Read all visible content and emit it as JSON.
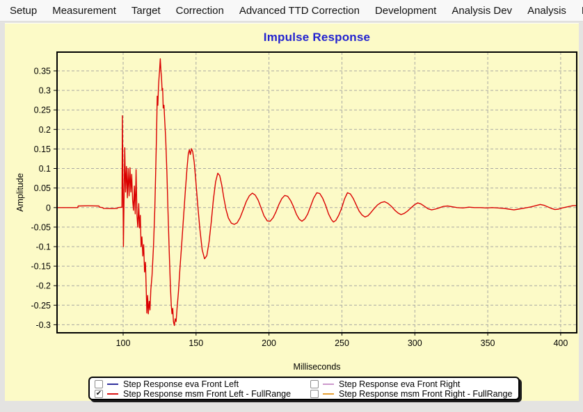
{
  "menu": {
    "items": [
      {
        "label": "Setup"
      },
      {
        "label": "Measurement"
      },
      {
        "label": "Target"
      },
      {
        "label": "Correction"
      },
      {
        "label": "Advanced TTD Correction"
      },
      {
        "label": "Development"
      },
      {
        "label": "Analysis Dev"
      },
      {
        "label": "Analysis"
      },
      {
        "label": "P"
      }
    ]
  },
  "chart": {
    "background_color": "#fcfac7",
    "title_color": "#2323d0",
    "grid_color": "#a8a8a2"
  },
  "chart_data": {
    "type": "line",
    "title": "Impulse Response",
    "xlabel": "Milliseconds",
    "ylabel": "Amplitude",
    "xlim": [
      54.7,
      411.0
    ],
    "ylim": [
      -0.3206,
      0.398
    ],
    "grid": true,
    "x_ticks": [
      {
        "v": 100,
        "label": "100"
      },
      {
        "v": 150,
        "label": "150"
      },
      {
        "v": 200,
        "label": "200"
      },
      {
        "v": 250,
        "label": "250"
      },
      {
        "v": 300,
        "label": "300"
      },
      {
        "v": 350,
        "label": "350"
      },
      {
        "v": 400,
        "label": "400"
      }
    ],
    "y_ticks": [
      {
        "v": 0.35,
        "label": "0.35"
      },
      {
        "v": 0.3,
        "label": "0.3"
      },
      {
        "v": 0.25,
        "label": "0.25"
      },
      {
        "v": 0.2,
        "label": "0.2"
      },
      {
        "v": 0.15,
        "label": "0.15"
      },
      {
        "v": 0.1,
        "label": "0.1"
      },
      {
        "v": 0.05,
        "label": "0.05"
      },
      {
        "v": 0,
        "label": "0"
      },
      {
        "v": -0.05,
        "label": "-0.05"
      },
      {
        "v": -0.1,
        "label": "-0.1"
      },
      {
        "v": -0.15,
        "label": "-0.15"
      },
      {
        "v": -0.2,
        "label": "-0.2"
      },
      {
        "v": -0.25,
        "label": "-0.25"
      },
      {
        "v": -0.3,
        "label": "-0.3"
      }
    ],
    "series": [
      {
        "name": "Step Response msm Front Left - FullRange",
        "color": "#da0000",
        "points": [
          [
            54.7,
            0
          ],
          [
            60,
            0
          ],
          [
            65,
            0
          ],
          [
            68.8,
            0
          ],
          [
            69.2,
            0.004
          ],
          [
            76,
            0.0045
          ],
          [
            83.4,
            0.004
          ],
          [
            83.8,
            0.001
          ],
          [
            86,
            0
          ],
          [
            86.4,
            -0.002
          ],
          [
            92,
            -0.0025
          ],
          [
            96,
            -0.002
          ],
          [
            96.4,
            0
          ],
          [
            99.2,
            0.001
          ],
          [
            99.5,
            0.235
          ],
          [
            100.2,
            -0.1
          ],
          [
            101.1,
            0.153
          ],
          [
            101.7,
            0.04
          ],
          [
            102.3,
            0.105
          ],
          [
            102.9,
            0.025
          ],
          [
            103.5,
            0.1
          ],
          [
            104.1,
            0.03
          ],
          [
            104.7,
            0.102
          ],
          [
            105.3,
            0.04
          ],
          [
            105.9,
            0.085
          ],
          [
            106.5,
            0.02
          ],
          [
            107.1,
            -0.007
          ],
          [
            107.7,
            0.055
          ],
          [
            108.3,
            -0.016
          ],
          [
            108.9,
            0.097
          ],
          [
            109.5,
            -0.02
          ],
          [
            110.1,
            -0.05
          ],
          [
            110.7,
            0.01
          ],
          [
            111.2,
            -0.052
          ],
          [
            111.8,
            -0.02
          ],
          [
            112.3,
            -0.1
          ],
          [
            112.9,
            -0.075
          ],
          [
            113.5,
            -0.124
          ],
          [
            114.1,
            -0.095
          ],
          [
            114.7,
            -0.165
          ],
          [
            115.3,
            -0.14
          ],
          [
            115.8,
            -0.205
          ],
          [
            116.3,
            -0.27
          ],
          [
            116.8,
            -0.225
          ],
          [
            117.3,
            -0.272
          ],
          [
            117.9,
            -0.24
          ],
          [
            118.4,
            -0.262
          ],
          [
            119,
            -0.21
          ],
          [
            119.8,
            -0.175
          ],
          [
            120.8,
            -0.1
          ],
          [
            121.7,
            -0.005
          ],
          [
            122.4,
            0.1
          ],
          [
            123,
            0.205
          ],
          [
            123.4,
            0.285
          ],
          [
            123.8,
            0.262
          ],
          [
            124.2,
            0.305
          ],
          [
            124.6,
            0.33
          ],
          [
            125,
            0.352
          ],
          [
            125.5,
            0.381
          ],
          [
            125.9,
            0.35
          ],
          [
            126.3,
            0.335
          ],
          [
            126.7,
            0.3
          ],
          [
            127.1,
            0.305
          ],
          [
            127.5,
            0.255
          ],
          [
            128,
            0.262
          ],
          [
            128.5,
            0.225
          ],
          [
            129.2,
            0.175
          ],
          [
            130,
            0.09
          ],
          [
            130.8,
            -0.01
          ],
          [
            131.6,
            -0.11
          ],
          [
            132.4,
            -0.2
          ],
          [
            133,
            -0.25
          ],
          [
            133.5,
            -0.272
          ],
          [
            134,
            -0.258
          ],
          [
            134.5,
            -0.292
          ],
          [
            135.1,
            -0.302
          ],
          [
            135.7,
            -0.285
          ],
          [
            136.3,
            -0.292
          ],
          [
            137,
            -0.258
          ],
          [
            137.9,
            -0.218
          ],
          [
            139,
            -0.155
          ],
          [
            140.2,
            -0.09
          ],
          [
            141.4,
            -0.025
          ],
          [
            142.6,
            0.04
          ],
          [
            143.8,
            0.1
          ],
          [
            144.7,
            0.138
          ],
          [
            145.4,
            0.148
          ],
          [
            146.1,
            0.136
          ],
          [
            146.9,
            0.151
          ],
          [
            147.7,
            0.143
          ],
          [
            148.7,
            0.117
          ],
          [
            149.8,
            0.07
          ],
          [
            151.2,
            0.005
          ],
          [
            152.6,
            -0.055
          ],
          [
            154.2,
            -0.108
          ],
          [
            155.8,
            -0.131
          ],
          [
            157.4,
            -0.123
          ],
          [
            158.9,
            -0.088
          ],
          [
            160.4,
            -0.038
          ],
          [
            161.9,
            0.02
          ],
          [
            163.4,
            0.066
          ],
          [
            164.9,
            0.088
          ],
          [
            166.2,
            0.082
          ],
          [
            167.6,
            0.058
          ],
          [
            169.1,
            0.024
          ],
          [
            170.6,
            -0.006
          ],
          [
            172.2,
            -0.027
          ],
          [
            174.2,
            -0.04
          ],
          [
            176.2,
            -0.043
          ],
          [
            178.2,
            -0.039
          ],
          [
            180.2,
            -0.026
          ],
          [
            182.3,
            -0.006
          ],
          [
            184.5,
            0.016
          ],
          [
            186.5,
            0.03
          ],
          [
            188.6,
            0.037
          ],
          [
            190.6,
            0.032
          ],
          [
            192.6,
            0.019
          ],
          [
            194.6,
            -0.001
          ],
          [
            196.6,
            -0.021
          ],
          [
            198.8,
            -0.034
          ],
          [
            200.8,
            -0.035
          ],
          [
            202.8,
            -0.026
          ],
          [
            204.8,
            -0.011
          ],
          [
            206.8,
            0.008
          ],
          [
            208.8,
            0.023
          ],
          [
            210.8,
            0.031
          ],
          [
            212.8,
            0.029
          ],
          [
            214.8,
            0.018
          ],
          [
            216.8,
            0.002
          ],
          [
            218.8,
            -0.017
          ],
          [
            220.8,
            -0.03
          ],
          [
            222.6,
            -0.035
          ],
          [
            224.6,
            -0.029
          ],
          [
            226.6,
            -0.016
          ],
          [
            228.6,
            0.004
          ],
          [
            230.6,
            0.024
          ],
          [
            232.8,
            0.038
          ],
          [
            234.8,
            0.036
          ],
          [
            236.8,
            0.024
          ],
          [
            238.8,
            0.006
          ],
          [
            240.8,
            -0.016
          ],
          [
            242.8,
            -0.031
          ],
          [
            244.2,
            -0.037
          ],
          [
            245.8,
            -0.033
          ],
          [
            247.8,
            -0.02
          ],
          [
            249.8,
            -0.002
          ],
          [
            251.8,
            0.022
          ],
          [
            253.8,
            0.038
          ],
          [
            255.8,
            0.035
          ],
          [
            257.8,
            0.023
          ],
          [
            259.8,
            0.007
          ],
          [
            261.8,
            -0.009
          ],
          [
            263.8,
            -0.019
          ],
          [
            265.8,
            -0.024
          ],
          [
            267.8,
            -0.021
          ],
          [
            269.8,
            -0.013
          ],
          [
            272,
            -0.003
          ],
          [
            274.5,
            0.007
          ],
          [
            277,
            0.013
          ],
          [
            279.2,
            0.015
          ],
          [
            281.5,
            0.011
          ],
          [
            284,
            0.003
          ],
          [
            286.3,
            -0.007
          ],
          [
            288.5,
            -0.014
          ],
          [
            290.5,
            -0.018
          ],
          [
            292.7,
            -0.015
          ],
          [
            295,
            -0.009
          ],
          [
            297.3,
            -0.001
          ],
          [
            299.7,
            0.007
          ],
          [
            302,
            0.012
          ],
          [
            304.3,
            0.009
          ],
          [
            306.7,
            0.003
          ],
          [
            309,
            -0.003
          ],
          [
            311.5,
            -0.006
          ],
          [
            314,
            -0.004
          ],
          [
            316.5,
            -0.001
          ],
          [
            319.5,
            0.003
          ],
          [
            322.5,
            0.004
          ],
          [
            325.5,
            0.002
          ],
          [
            329,
            0
          ],
          [
            333,
            -0.001
          ],
          [
            337,
            0.001
          ],
          [
            341,
            0
          ],
          [
            345,
            0
          ],
          [
            349,
            -0.001
          ],
          [
            353,
            0
          ],
          [
            357,
            -0.001
          ],
          [
            361,
            -0.002
          ],
          [
            364.5,
            -0.004
          ],
          [
            368,
            -0.006
          ],
          [
            371,
            -0.004
          ],
          [
            374,
            -0.002
          ],
          [
            377,
            0
          ],
          [
            380,
            0.002
          ],
          [
            383,
            0.005
          ],
          [
            386,
            0.008
          ],
          [
            388.5,
            0.006
          ],
          [
            391,
            0.002
          ],
          [
            393.5,
            -0.002
          ],
          [
            396,
            -0.005
          ],
          [
            398.5,
            -0.004
          ],
          [
            401,
            -0.001
          ],
          [
            403.5,
            0.001
          ],
          [
            406,
            0.003
          ],
          [
            408.5,
            0.005
          ],
          [
            411,
            0.005
          ]
        ]
      }
    ]
  },
  "legend": {
    "items": [
      {
        "label": "Step Response eva Front Left",
        "color": "#30309c",
        "checked": false
      },
      {
        "label": "Step Response msm Front Left - FullRange",
        "color": "#da1414",
        "checked": true
      },
      {
        "label": "Step Response eva Front Right",
        "color": "#cc99cc",
        "checked": false
      },
      {
        "label": "Step Response msm Front Right - FullRange",
        "color": "#e59f33",
        "checked": false
      }
    ]
  }
}
